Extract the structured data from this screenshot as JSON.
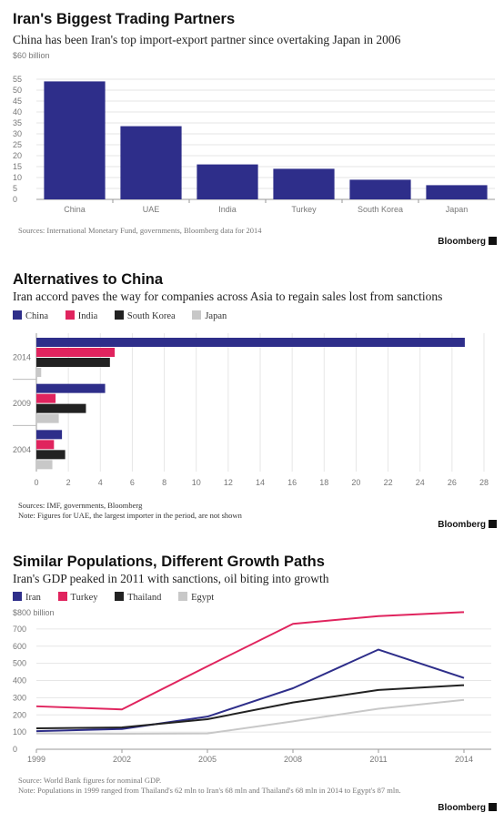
{
  "colors": {
    "navy": "#2e2e8a",
    "pink": "#e0245e",
    "dark": "#222222",
    "light": "#c8c8c8"
  },
  "brand": "Bloomberg",
  "chart_data": [
    {
      "type": "bar",
      "title": "Iran's Biggest Trading Partners",
      "subtitle": "China has been Iran's top import-export partner since overtaking Japan in 2006",
      "unit_label": "$60 billion",
      "categories": [
        "China",
        "UAE",
        "India",
        "Turkey",
        "South Korea",
        "Japan"
      ],
      "values": [
        54,
        33.5,
        16,
        14,
        9,
        6.5
      ],
      "yticks": [
        "0",
        "5",
        "10",
        "15",
        "20",
        "25",
        "30",
        "35",
        "40",
        "45",
        "50",
        "55"
      ],
      "ylim": [
        0,
        60
      ],
      "grid": true,
      "color": "#2e2e8a",
      "source": "Sources: International Monetary Fund, governments, Bloomberg data for 2014"
    },
    {
      "type": "bar",
      "orientation": "horizontal",
      "title": "Alternatives to China",
      "subtitle": "Iran accord paves the way for companies across Asia to regain sales lost from sanctions",
      "categories": [
        "2014",
        "2009",
        "2004"
      ],
      "series": [
        {
          "name": "China",
          "color": "#2e2e8a",
          "values": [
            26.8,
            4.3,
            1.6
          ]
        },
        {
          "name": "India",
          "color": "#e0245e",
          "values": [
            4.9,
            1.2,
            1.1
          ]
        },
        {
          "name": "South Korea",
          "color": "#222222",
          "values": [
            4.6,
            3.1,
            1.8
          ]
        },
        {
          "name": "Japan",
          "color": "#c8c8c8",
          "values": [
            0.3,
            1.4,
            1.0
          ]
        }
      ],
      "xticks": [
        "0",
        "2",
        "4",
        "6",
        "8",
        "10",
        "12",
        "14",
        "16",
        "18",
        "20",
        "22",
        "24",
        "26",
        "28"
      ],
      "xlim": [
        0,
        28
      ],
      "grid": true,
      "legend_position": "top-left",
      "source": "Sources: IMF, governments, Bloomberg",
      "note": "Note: Figures for UAE, the largest importer in the period, are not shown"
    },
    {
      "type": "line",
      "title": "Similar Populations, Different Growth Paths",
      "subtitle": "Iran's GDP peaked in 2011 with sanctions, oil biting into growth",
      "unit_label": "$800 billion",
      "x": [
        1999,
        2002,
        2005,
        2008,
        2011,
        2014
      ],
      "xticks": [
        "1999",
        "2002",
        "2005",
        "2008",
        "2011",
        "2014"
      ],
      "yticks": [
        "0",
        "100",
        "200",
        "300",
        "400",
        "500",
        "600",
        "700"
      ],
      "ylim": [
        0,
        800
      ],
      "xlim": [
        1999,
        2014
      ],
      "grid": true,
      "legend_position": "top-left",
      "series": [
        {
          "name": "Iran",
          "color": "#2e2e8a",
          "points": [
            [
              1999,
              105
            ],
            [
              2002,
              118
            ],
            [
              2005,
              190
            ],
            [
              2008,
              355
            ],
            [
              2011,
              580
            ],
            [
              2014,
              415
            ]
          ]
        },
        {
          "name": "Turkey",
          "color": "#e0245e",
          "points": [
            [
              1999,
              250
            ],
            [
              2002,
              232
            ],
            [
              2005,
              483
            ],
            [
              2008,
              730
            ],
            [
              2011,
              775
            ],
            [
              2014,
              798
            ]
          ]
        },
        {
          "name": "Thailand",
          "color": "#222222",
          "points": [
            [
              1999,
              122
            ],
            [
              2002,
              127
            ],
            [
              2005,
              175
            ],
            [
              2008,
              272
            ],
            [
              2011,
              345
            ],
            [
              2014,
              373
            ]
          ]
        },
        {
          "name": "Egypt",
          "color": "#c8c8c8",
          "points": [
            [
              1999,
              92
            ],
            [
              2002,
              90
            ],
            [
              2005,
              92
            ],
            [
              2008,
              162
            ],
            [
              2011,
              236
            ],
            [
              2014,
              287
            ]
          ]
        }
      ],
      "source": "Source: World Bank figures for nominal GDP.",
      "note": "Note: Populations in 1999 ranged from Thailand's 62 mln to Iran's 68 mln and Thailand's 68 mln in 2014 to Egypt's 87 mln."
    }
  ]
}
